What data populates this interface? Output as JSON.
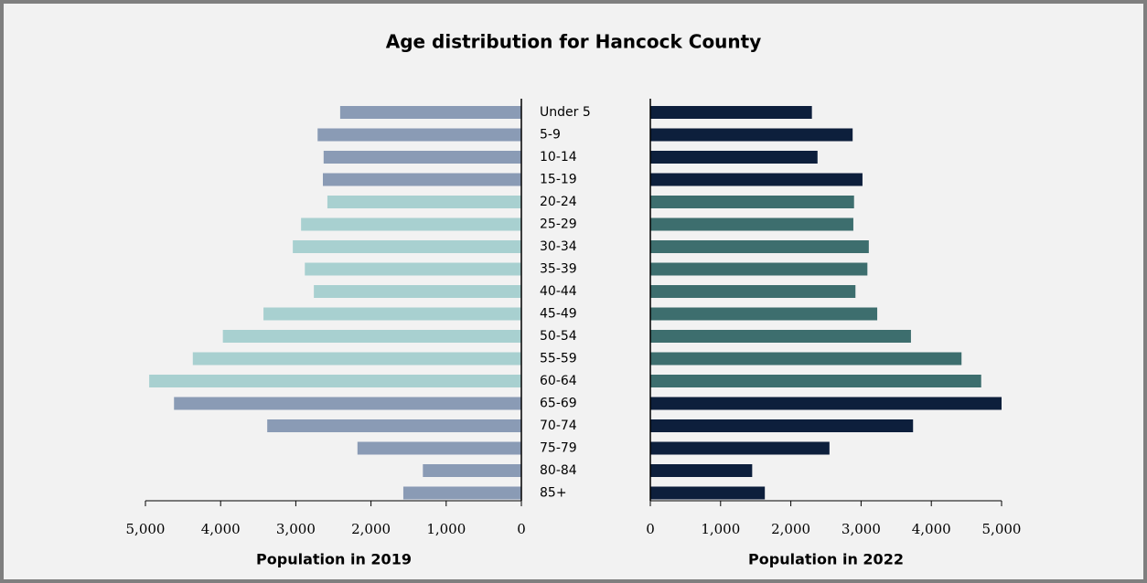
{
  "chart_data": {
    "type": "butterfly",
    "title": "Age distribution for Hancock County",
    "categories": [
      "Under 5",
      "5-9",
      "10-14",
      "15-19",
      "20-24",
      "25-29",
      "30-34",
      "35-39",
      "40-44",
      "45-49",
      "50-54",
      "55-59",
      "60-64",
      "65-69",
      "70-74",
      "75-79",
      "80-84",
      "85+"
    ],
    "left": {
      "xlabel": "Population in 2019",
      "values": [
        2410,
        2710,
        2630,
        2640,
        2580,
        2930,
        3040,
        2880,
        2760,
        3430,
        3970,
        4370,
        4950,
        4620,
        3380,
        2180,
        1310,
        1570
      ],
      "colors": [
        "#8a9bb5",
        "#8a9bb5",
        "#8a9bb5",
        "#8a9bb5",
        "#a8d0d0",
        "#a8d0d0",
        "#a8d0d0",
        "#a8d0d0",
        "#a8d0d0",
        "#a8d0d0",
        "#a8d0d0",
        "#a8d0d0",
        "#a8d0d0",
        "#8a9bb5",
        "#8a9bb5",
        "#8a9bb5",
        "#8a9bb5",
        "#8a9bb5"
      ],
      "xlim": [
        0,
        5000
      ],
      "xticks": [
        0,
        {
          "value": 1000,
          "label": "1,000"
        },
        {
          "value": 2000,
          "label": "2,000"
        },
        {
          "value": 3000,
          "label": "3,000"
        },
        {
          "value": 4000,
          "label": "4,000"
        },
        {
          "value": 5000,
          "label": "5,000"
        }
      ]
    },
    "right": {
      "xlabel": "Population in 2022",
      "values": [
        2300,
        2880,
        2380,
        3020,
        2900,
        2890,
        3110,
        3090,
        2920,
        3230,
        3710,
        4430,
        4710,
        5000,
        3740,
        2550,
        1450,
        1630
      ],
      "colors": [
        "#0d1f3c",
        "#0d1f3c",
        "#0d1f3c",
        "#0d1f3c",
        "#3d6e6e",
        "#3d6e6e",
        "#3d6e6e",
        "#3d6e6e",
        "#3d6e6e",
        "#3d6e6e",
        "#3d6e6e",
        "#3d6e6e",
        "#3d6e6e",
        "#0d1f3c",
        "#0d1f3c",
        "#0d1f3c",
        "#0d1f3c",
        "#0d1f3c"
      ],
      "xlim": [
        0,
        5000
      ],
      "xticks": [
        0,
        {
          "value": 1000,
          "label": "1,000"
        },
        {
          "value": 2000,
          "label": "2,000"
        },
        {
          "value": 3000,
          "label": "3,000"
        },
        {
          "value": 4000,
          "label": "4,000"
        },
        {
          "value": 5000,
          "label": "5,000"
        }
      ]
    }
  }
}
